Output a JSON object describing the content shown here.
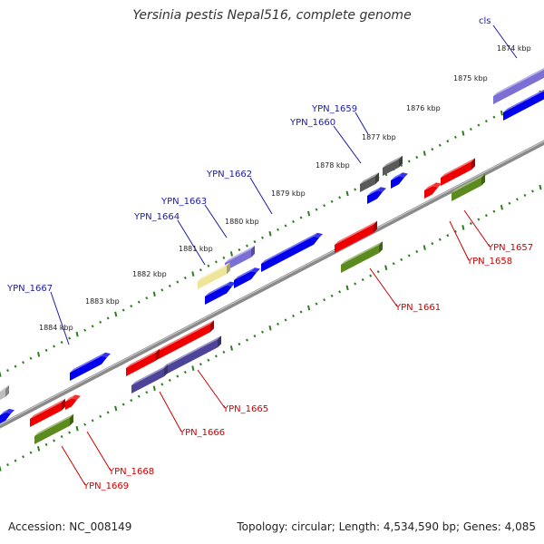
{
  "title": "Yersinia pestis Nepal516, complete genome",
  "footer": {
    "accession": "Accession: NC_008149",
    "summary": "Topology: circular; Length: 4,534,590 bp; Genes: 4,085"
  },
  "colors": {
    "backbone": "#8a8a8a",
    "ticks": "#2e7d1e",
    "label_blue": "#1a1aa6",
    "label_red": "#cc0000",
    "gene_blue": "#0000ee",
    "gene_red": "#ee0000",
    "gene_purple": "#4d4499",
    "gene_lavender": "#7b6fd6",
    "gene_olive": "#5b8a1e",
    "gene_gray": "#5a5a5a",
    "gene_yellow": "#efe59a",
    "gene_silver": "#bdbdbd"
  },
  "ruler": [
    "1874 kbp",
    "1875 kbp",
    "1876 kbp",
    "1877 kbp",
    "1878 kbp",
    "1879 kbp",
    "1880 kbp",
    "1881 kbp",
    "1882 kbp",
    "1883 kbp",
    "1884 kbp"
  ],
  "genes_top": [
    "cls",
    "YPN_1659",
    "YPN_1660",
    "YPN_1662",
    "YPN_1663",
    "YPN_1664",
    "YPN_1667"
  ],
  "genes_bottom": [
    "YPN_1657",
    "YPN_1658",
    "YPN_1661",
    "YPN_1665",
    "YPN_1666",
    "YPN_1668",
    "YPN_1669"
  ]
}
